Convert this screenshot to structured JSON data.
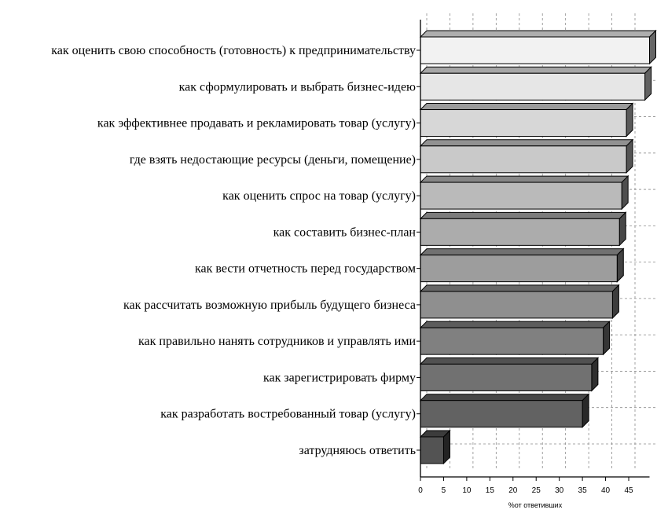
{
  "chart_data": {
    "type": "bar",
    "orientation": "horizontal",
    "style": "3d",
    "categories": [
      "как оценить свою способность (готовность) к предпринимательству",
      "как сформулировать и выбрать бизнес-идею",
      "как эффективнее продавать и рекламировать товар (услугу)",
      "где взять недостающие ресурсы (деньги, помещение)",
      "как оценить спрос на товар (услугу)",
      "как составить бизнес-план",
      "как вести отчетность перед государством",
      "как рассчитать возможную прибыль будущего бизнеса",
      "как правильно нанять сотрудников и управлять ими",
      "как зарегистрировать фирму",
      "как разработать востребованный товар (услугу)",
      "затрудняюсь ответить"
    ],
    "values": [
      49.5,
      48.5,
      44.5,
      44.5,
      43.5,
      43,
      42.5,
      41.5,
      39.5,
      37,
      35,
      5
    ],
    "xlabel": "%от ответивших",
    "xlim": [
      0,
      49.5
    ],
    "xticks": [
      0,
      5,
      10,
      15,
      20,
      25,
      30,
      35,
      40,
      45
    ],
    "grid": true,
    "legend": "none",
    "colors": [
      "#f2f2f2",
      "#e6e6e6",
      "#d7d7d7",
      "#c9c9c9",
      "#bababa",
      "#acacac",
      "#9d9d9d",
      "#8f8f8f",
      "#808080",
      "#717171",
      "#626262",
      "#535353"
    ]
  }
}
